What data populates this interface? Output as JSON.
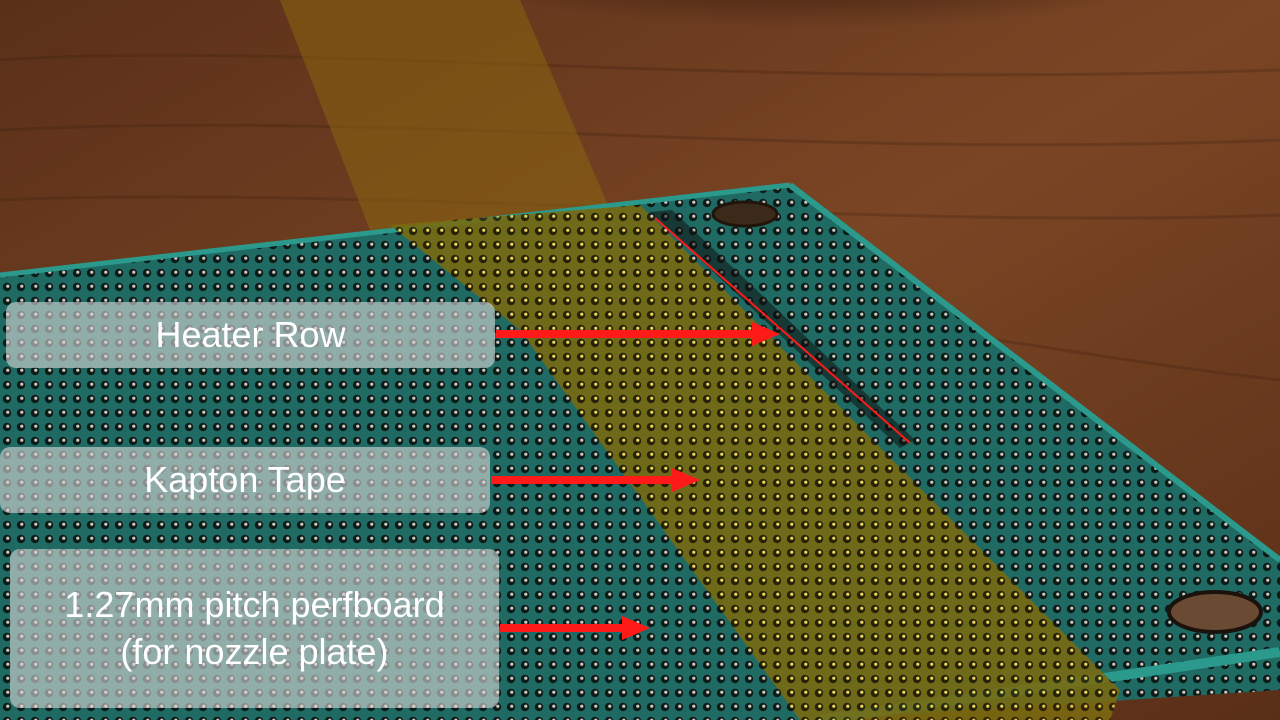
{
  "annotations": {
    "heater_row": "Heater Row",
    "kapton_tape": "Kapton Tape",
    "perfboard": "1.27mm pitch perfboard\n(for nozzle plate)"
  },
  "colors": {
    "arrow": "#ff1a1a",
    "board": "#1d6e66",
    "kapton": "#b59a12",
    "wood": "#6a3a1f"
  }
}
